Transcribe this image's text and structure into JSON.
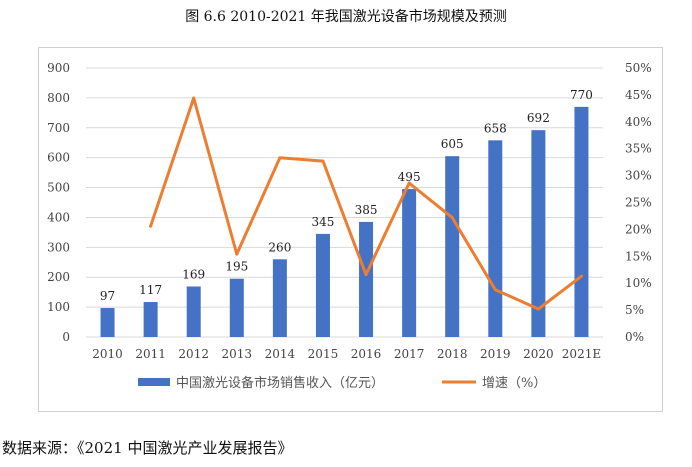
{
  "figure_title": "图 6.6  2010-2021 年我国激光设备市场规模及预测",
  "source_note": "数据来源：《2021 中国激光产业发展报告》",
  "colors": {
    "bar": "#4472C4",
    "line": "#ED7D31",
    "grid": "#d9d9d9"
  },
  "chart_data": {
    "type": "bar",
    "title": "图 6.6  2010-2021 年我国激光设备市场规模及预测",
    "categories": [
      "2010",
      "2011",
      "2012",
      "2013",
      "2014",
      "2015",
      "2016",
      "2017",
      "2018",
      "2019",
      "2020",
      "2021E"
    ],
    "series": [
      {
        "name": "中国激光设备市场销售收入（亿元）",
        "type": "bar",
        "axis": "left",
        "values": [
          97,
          117,
          169,
          195,
          260,
          345,
          385,
          495,
          605,
          658,
          692,
          770
        ]
      },
      {
        "name": "增速（%）",
        "type": "line",
        "axis": "right",
        "values": [
          null,
          20.6,
          44.4,
          15.4,
          33.3,
          32.7,
          11.6,
          28.6,
          22.2,
          8.8,
          5.2,
          11.3
        ]
      }
    ],
    "y_left": {
      "ylim": [
        0,
        900
      ],
      "ticks": [
        "0",
        "100",
        "200",
        "300",
        "400",
        "500",
        "600",
        "700",
        "800",
        "900"
      ]
    },
    "y_right": {
      "ylim": [
        0,
        50
      ],
      "ticks": [
        "0%",
        "5%",
        "10%",
        "15%",
        "20%",
        "25%",
        "30%",
        "35%",
        "40%",
        "45%",
        "50%"
      ]
    },
    "legend": {
      "position": "bottom",
      "items": [
        "中国激光设备市场销售收入（亿元）",
        "增速（%）"
      ]
    },
    "grid": true
  }
}
